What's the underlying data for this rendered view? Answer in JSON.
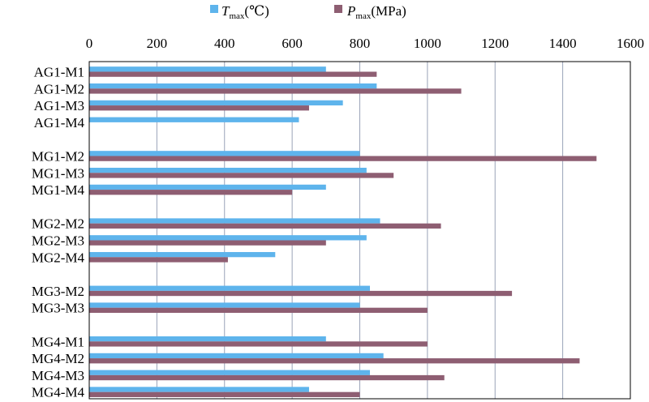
{
  "chart_data": {
    "type": "bar",
    "orientation": "horizontal",
    "categories": [
      "AG1-M1",
      "AG1-M2",
      "AG1-M3",
      "AG1-M4",
      "",
      "MG1-M2",
      "MG1-M3",
      "MG1-M4",
      "",
      "MG2-M2",
      "MG2-M3",
      "MG2-M4",
      "",
      "MG3-M2",
      "MG3-M3",
      "",
      "MG4-M1",
      "MG4-M2",
      "MG4-M3",
      "MG4-M4"
    ],
    "series": [
      {
        "name_main": "T",
        "name_sub": "max",
        "name_unit": "(℃)",
        "color": "#5eb4ec",
        "values": [
          700,
          850,
          750,
          620,
          null,
          800,
          820,
          700,
          null,
          860,
          820,
          550,
          null,
          830,
          800,
          null,
          700,
          870,
          830,
          650
        ]
      },
      {
        "name_main": "P",
        "name_sub": "max",
        "name_unit": "(MPa)",
        "color": "#8e5e72",
        "values": [
          850,
          1100,
          650,
          null,
          null,
          1500,
          900,
          600,
          null,
          1040,
          700,
          410,
          null,
          1250,
          1000,
          null,
          1000,
          1450,
          1050,
          800
        ]
      }
    ],
    "x_ticks": [
      "0",
      "200",
      "400",
      "600",
      "800",
      "1000",
      "1200",
      "1400",
      "1600"
    ],
    "xlim": [
      0,
      1600
    ],
    "grid": true,
    "legend_position": "top"
  }
}
